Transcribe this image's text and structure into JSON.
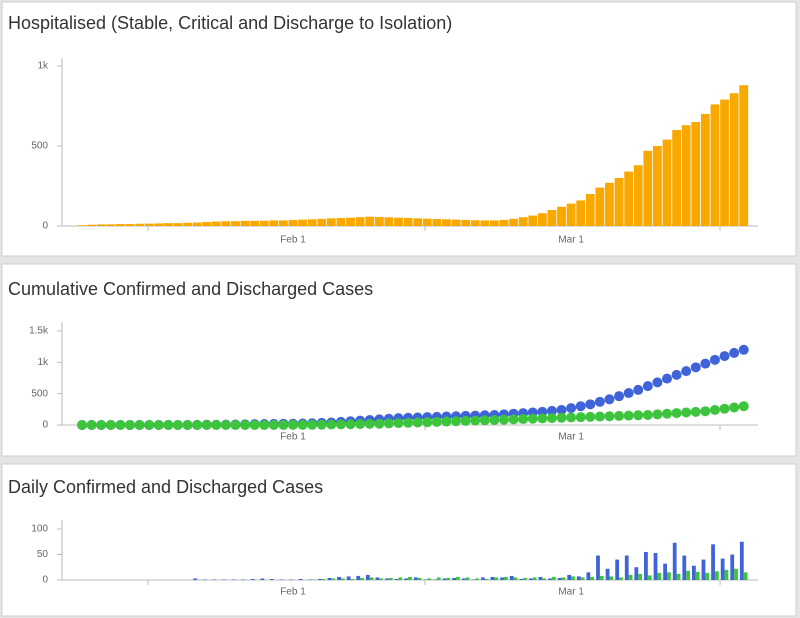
{
  "chart_data": [
    {
      "type": "bar",
      "title": "Hospitalised (Stable, Critical and Discharge to Isolation)",
      "categories": [
        null,
        null,
        null,
        null,
        null,
        null,
        null,
        null,
        null,
        null,
        null,
        null,
        null,
        null,
        null,
        null,
        null,
        null,
        null,
        null,
        null,
        null,
        "Feb 1",
        null,
        null,
        null,
        null,
        null,
        null,
        null,
        null,
        null,
        null,
        null,
        null,
        null,
        null,
        null,
        null,
        null,
        null,
        null,
        null,
        null,
        null,
        null,
        null,
        null,
        null,
        null,
        null,
        "Mar 1",
        null,
        null,
        null,
        null,
        null,
        null,
        null,
        null,
        null,
        null,
        null,
        null,
        null,
        null,
        null,
        null,
        null,
        null
      ],
      "series": [
        {
          "color": "#f9a800",
          "values": [
            5,
            8,
            10,
            10,
            12,
            12,
            14,
            15,
            16,
            18,
            18,
            20,
            22,
            25,
            28,
            30,
            30,
            32,
            32,
            33,
            35,
            35,
            38,
            40,
            42,
            45,
            48,
            50,
            52,
            55,
            58,
            56,
            54,
            52,
            50,
            48,
            46,
            44,
            42,
            40,
            38,
            36,
            35,
            35,
            38,
            45,
            55,
            65,
            80,
            100,
            120,
            140,
            160,
            200,
            240,
            270,
            300,
            340,
            380,
            470,
            500,
            540,
            600,
            630,
            650,
            700,
            760,
            790,
            830,
            880
          ]
        }
      ],
      "ylim": [
        0,
        1000
      ],
      "yticks": [
        0,
        500,
        {
          "value": 1000,
          "label": "1k"
        }
      ]
    },
    {
      "type": "dot",
      "title": "Cumulative Confirmed and Discharged Cases",
      "categories": [
        null,
        null,
        null,
        null,
        null,
        null,
        null,
        null,
        null,
        null,
        null,
        null,
        null,
        null,
        null,
        null,
        null,
        null,
        null,
        null,
        null,
        null,
        "Feb 1",
        null,
        null,
        null,
        null,
        null,
        null,
        null,
        null,
        null,
        null,
        null,
        null,
        null,
        null,
        null,
        null,
        null,
        null,
        null,
        null,
        null,
        null,
        null,
        null,
        null,
        null,
        null,
        null,
        "Mar 1",
        null,
        null,
        null,
        null,
        null,
        null,
        null,
        null,
        null,
        null,
        null,
        null,
        null,
        null,
        null,
        null,
        null,
        null
      ],
      "series": [
        {
          "color": "#3f63d8",
          "values": [
            0,
            0,
            0,
            0,
            0,
            0,
            0,
            0,
            0,
            0,
            0,
            0,
            1,
            3,
            4,
            5,
            7,
            10,
            13,
            16,
            18,
            19,
            20,
            24,
            28,
            33,
            40,
            50,
            60,
            70,
            80,
            90,
            100,
            110,
            115,
            120,
            125,
            130,
            135,
            140,
            145,
            150,
            155,
            160,
            170,
            180,
            190,
            200,
            210,
            225,
            240,
            270,
            300,
            330,
            370,
            410,
            460,
            510,
            560,
            620,
            680,
            740,
            800,
            860,
            920,
            980,
            1040,
            1100,
            1150,
            1200
          ]
        },
        {
          "color": "#3cc43c",
          "values": [
            0,
            0,
            0,
            0,
            0,
            0,
            0,
            0,
            0,
            0,
            0,
            0,
            0,
            0,
            0,
            0,
            0,
            0,
            0,
            0,
            0,
            0,
            1,
            2,
            3,
            5,
            8,
            10,
            12,
            15,
            18,
            20,
            25,
            30,
            35,
            40,
            45,
            50,
            55,
            60,
            65,
            70,
            75,
            80,
            85,
            90,
            95,
            100,
            105,
            110,
            115,
            120,
            125,
            130,
            135,
            140,
            145,
            150,
            155,
            160,
            170,
            180,
            190,
            200,
            210,
            220,
            240,
            260,
            280,
            300
          ]
        }
      ],
      "ylim": [
        0,
        1500
      ],
      "yticks": [
        0,
        500,
        {
          "value": 1000,
          "label": "1k"
        },
        {
          "value": 1500,
          "label": "1.5k"
        }
      ]
    },
    {
      "type": "grouped-bar",
      "title": "Daily Confirmed and Discharged Cases",
      "categories": [
        null,
        null,
        null,
        null,
        null,
        null,
        null,
        null,
        null,
        null,
        null,
        null,
        null,
        null,
        null,
        null,
        null,
        null,
        null,
        null,
        null,
        null,
        "Feb 1",
        null,
        null,
        null,
        null,
        null,
        null,
        null,
        null,
        null,
        null,
        null,
        null,
        null,
        null,
        null,
        null,
        null,
        null,
        null,
        null,
        null,
        null,
        null,
        null,
        null,
        null,
        null,
        null,
        "Mar 1",
        null,
        null,
        null,
        null,
        null,
        null,
        null,
        null,
        null,
        null,
        null,
        null,
        null,
        null,
        null,
        null,
        null,
        null
      ],
      "series": [
        {
          "color": "#3f63d8",
          "values": [
            0,
            0,
            0,
            0,
            0,
            0,
            0,
            0,
            0,
            0,
            0,
            0,
            3,
            1,
            1,
            1,
            1,
            1,
            2,
            3,
            2,
            1,
            1,
            2,
            1,
            2,
            4,
            6,
            7,
            8,
            10,
            5,
            3,
            2,
            3,
            5,
            1,
            1,
            3,
            4,
            3,
            1,
            5,
            6,
            5,
            8,
            2,
            3,
            6,
            3,
            4,
            10,
            7,
            15,
            48,
            22,
            40,
            48,
            25,
            55,
            53,
            32,
            73,
            48,
            28,
            40,
            70,
            42,
            50,
            75
          ]
        },
        {
          "color": "#3cc43c",
          "values": [
            0,
            0,
            0,
            0,
            0,
            0,
            0,
            0,
            0,
            0,
            0,
            0,
            0,
            0,
            0,
            0,
            0,
            0,
            0,
            0,
            0,
            0,
            0,
            0,
            1,
            2,
            3,
            3,
            2,
            4,
            5,
            3,
            4,
            5,
            6,
            4,
            3,
            5,
            4,
            6,
            5,
            3,
            2,
            5,
            6,
            5,
            4,
            5,
            3,
            6,
            5,
            7,
            5,
            6,
            8,
            7,
            5,
            10,
            12,
            9,
            14,
            15,
            12,
            18,
            16,
            14,
            17,
            20,
            22,
            15
          ]
        }
      ],
      "ylim": [
        0,
        100
      ],
      "yticks": [
        0,
        50,
        100
      ]
    }
  ]
}
